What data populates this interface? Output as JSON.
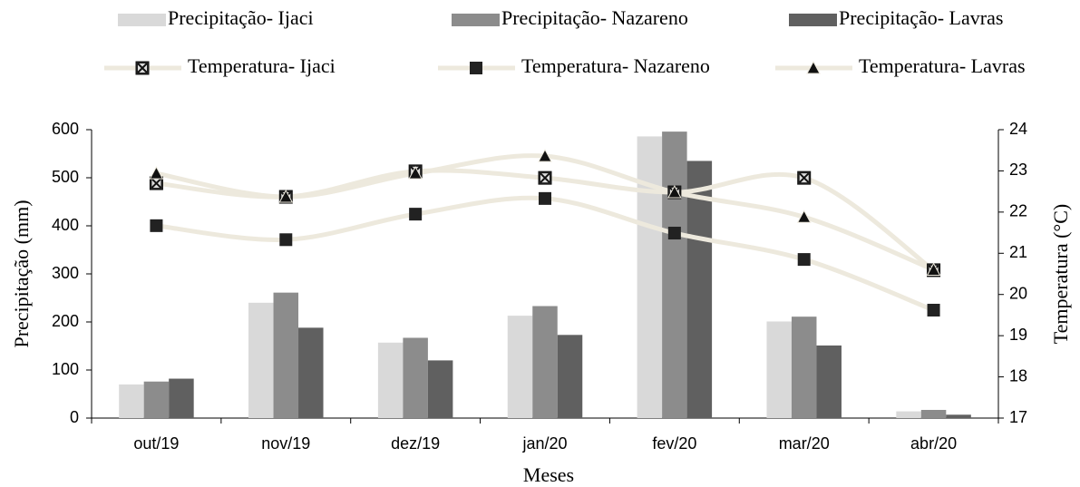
{
  "chart_data": {
    "type": "bar-line",
    "categories": [
      "out/19",
      "nov/19",
      "dez/19",
      "jan/20",
      "fev/20",
      "mar/20",
      "abr/20"
    ],
    "xlabel": "Meses",
    "ylabel": "Precipitação (mm)",
    "y2label": "Temperatura (°C)",
    "ylim": [
      0,
      600
    ],
    "yticks": [
      0,
      100,
      200,
      300,
      400,
      500,
      600
    ],
    "y2lim": [
      17,
      24
    ],
    "y2ticks": [
      17,
      18,
      19,
      20,
      21,
      22,
      23,
      24
    ],
    "series": [
      {
        "name": "Precipitação- Ijaci",
        "type": "bar",
        "color": "#d9d9d9",
        "values": [
          70,
          240,
          157,
          213,
          586,
          201,
          14
        ]
      },
      {
        "name": "Precipitação- Nazareno",
        "type": "bar",
        "color": "#8c8c8c",
        "values": [
          76,
          261,
          167,
          233,
          596,
          211,
          17
        ]
      },
      {
        "name": "Precipitação- Lavras",
        "type": "bar",
        "color": "#606060",
        "values": [
          82,
          188,
          120,
          173,
          535,
          151,
          7
        ]
      },
      {
        "name": "Temperatura- Ijaci",
        "type": "line",
        "axis": "y2",
        "color": "#ede9dd",
        "marker": "square-x",
        "values": [
          22.7,
          22.37,
          22.99,
          22.83,
          22.48,
          22.83,
          20.59
        ]
      },
      {
        "name": "Temperatura- Nazareno",
        "type": "line",
        "axis": "y2",
        "color": "#ede9dd",
        "marker": "square",
        "values": [
          21.67,
          21.33,
          21.95,
          22.33,
          21.49,
          20.85,
          19.62
        ]
      },
      {
        "name": "Temperatura- Lavras",
        "type": "line",
        "axis": "y2",
        "color": "#ede9dd",
        "marker": "triangle",
        "values": [
          22.94,
          22.37,
          22.94,
          23.36,
          22.48,
          21.88,
          20.6
        ]
      }
    ]
  }
}
